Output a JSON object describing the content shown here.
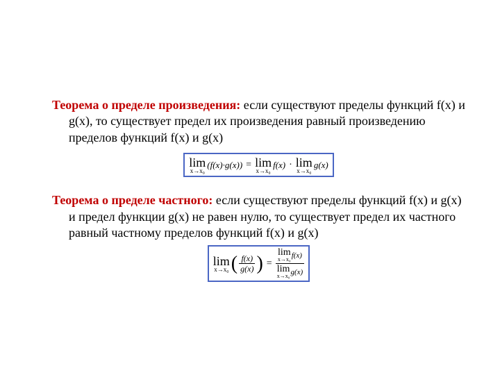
{
  "colors": {
    "heading_color": "#c00000",
    "body_text_color": "#000000",
    "formula_border": "#4a66c4",
    "background": "#ffffff"
  },
  "typography": {
    "body_font": "Times New Roman",
    "body_size_pt": 18,
    "formula_lim_size_pt": 18,
    "formula_expr_size_pt": 13,
    "formula_sub_size_pt": 9
  },
  "theorem1": {
    "heading": "Теорема о пределе произведения:",
    "body": " если существуют пределы функций f(x) и g(x), то существует предел их произведения равный произведению пределов функций f(x) и g(x)",
    "formula": {
      "lim_label": "lim",
      "sub": "x→x₀",
      "lhs_expr": "(f(x)·g(x))",
      "eq": "=",
      "rhs1_expr": "f(x)",
      "mul": "·",
      "rhs2_expr": "g(x)"
    }
  },
  "theorem2": {
    "heading": "Теорема о пределе частного:",
    "body": " если существуют пределы функций f(x) и g(x) и предел функции g(x) не равен нулю, то существует предел их частного равный частному пределов функций f(x) и g(x)",
    "formula": {
      "lim_label": "lim",
      "sub": "x→x₀",
      "frac_num": "f(x)",
      "frac_den": "g(x)",
      "eq": "=",
      "rhs_num_expr": "f(x)",
      "rhs_den_expr": "g(x)"
    }
  }
}
